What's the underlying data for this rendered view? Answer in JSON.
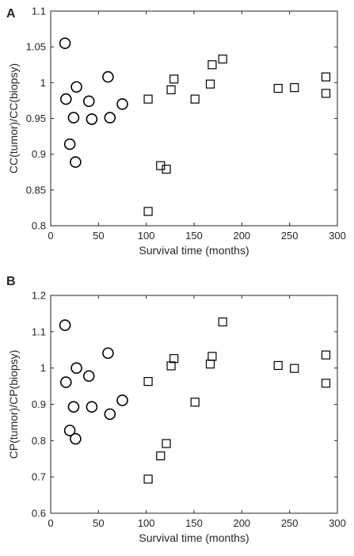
{
  "chart_data": [
    {
      "panel_label": "A",
      "type": "scatter",
      "xlabel": "Survival time (months)",
      "ylabel": "CC(tumor)/CC(biopsy)",
      "xlim": [
        0,
        300
      ],
      "ylim": [
        0.8,
        1.1
      ],
      "xticks": [
        "0",
        "50",
        "100",
        "150",
        "200",
        "250",
        "300"
      ],
      "yticks": [
        "0.8",
        "0.85",
        "0.9",
        "0.95",
        "1",
        "1.05",
        "1.1"
      ],
      "grid": false,
      "series": [
        {
          "marker": "circle",
          "points": [
            [
              15,
              1.055
            ],
            [
              16,
              0.977
            ],
            [
              20,
              0.914
            ],
            [
              24,
              0.951
            ],
            [
              26,
              0.889
            ],
            [
              27,
              0.994
            ],
            [
              40,
              0.974
            ],
            [
              43,
              0.949
            ],
            [
              60,
              1.008
            ],
            [
              62,
              0.951
            ],
            [
              75,
              0.97
            ]
          ]
        },
        {
          "marker": "square",
          "points": [
            [
              102,
              0.977
            ],
            [
              102,
              0.82
            ],
            [
              115,
              0.884
            ],
            [
              121,
              0.879
            ],
            [
              126,
              0.99
            ],
            [
              129,
              1.005
            ],
            [
              151,
              0.977
            ],
            [
              167,
              0.998
            ],
            [
              169,
              1.025
            ],
            [
              180,
              1.033
            ],
            [
              238,
              0.992
            ],
            [
              255,
              0.993
            ],
            [
              288,
              1.008
            ],
            [
              288,
              0.985
            ]
          ]
        }
      ]
    },
    {
      "panel_label": "B",
      "type": "scatter",
      "xlabel": "Survival time (months)",
      "ylabel": "CP(tumor)/CP(biopsy)",
      "xlim": [
        0,
        300
      ],
      "ylim": [
        0.6,
        1.2
      ],
      "xticks": [
        "0",
        "50",
        "100",
        "150",
        "200",
        "250",
        "300"
      ],
      "yticks": [
        "0.6",
        "0.7",
        "0.8",
        "0.9",
        "1",
        "1.1",
        "1.2"
      ],
      "grid": false,
      "series": [
        {
          "marker": "circle",
          "points": [
            [
              15,
              1.118
            ],
            [
              16,
              0.961
            ],
            [
              20,
              0.828
            ],
            [
              24,
              0.893
            ],
            [
              26,
              0.805
            ],
            [
              27,
              1.0
            ],
            [
              40,
              0.978
            ],
            [
              43,
              0.893
            ],
            [
              60,
              1.041
            ],
            [
              62,
              0.873
            ],
            [
              75,
              0.911
            ]
          ]
        },
        {
          "marker": "square",
          "points": [
            [
              102,
              0.963
            ],
            [
              102,
              0.694
            ],
            [
              115,
              0.758
            ],
            [
              121,
              0.792
            ],
            [
              126,
              1.006
            ],
            [
              129,
              1.026
            ],
            [
              151,
              0.906
            ],
            [
              167,
              1.011
            ],
            [
              169,
              1.032
            ],
            [
              180,
              1.127
            ],
            [
              238,
              1.007
            ],
            [
              255,
              0.999
            ],
            [
              288,
              1.036
            ],
            [
              288,
              0.958
            ]
          ]
        }
      ]
    }
  ]
}
